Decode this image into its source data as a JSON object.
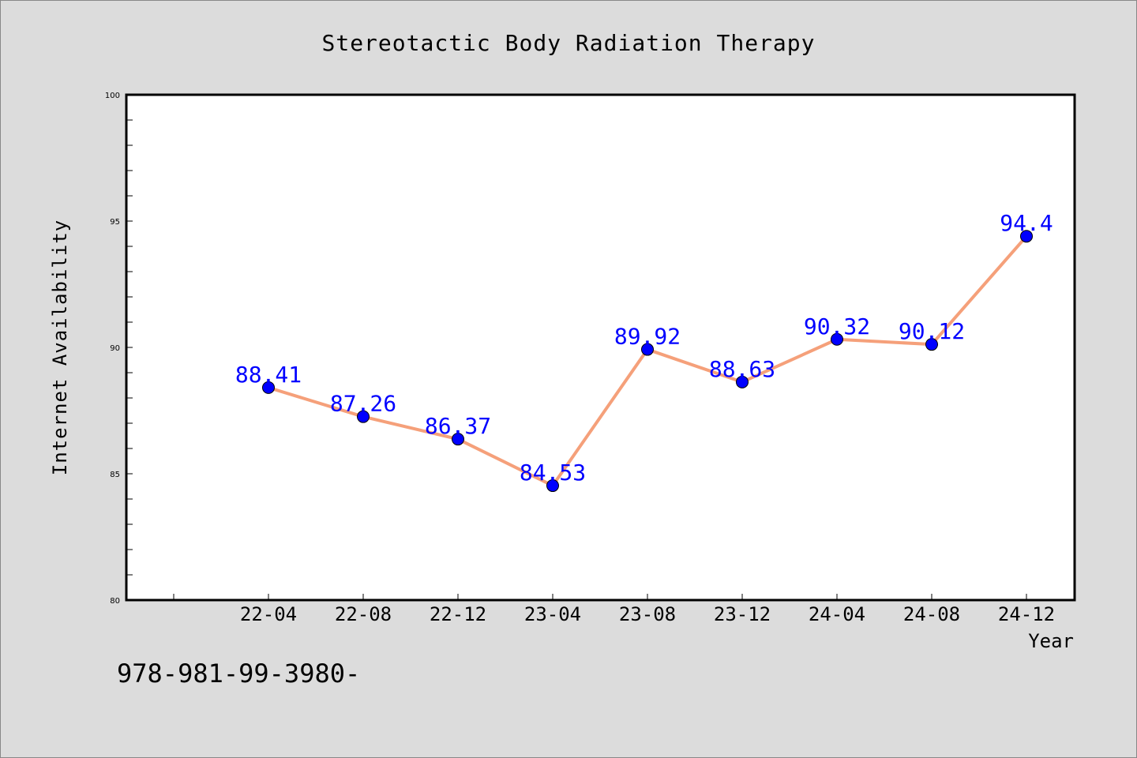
{
  "chart_data": {
    "type": "line",
    "title": "Stereotactic Body Radiation Therapy",
    "xlabel": "Year",
    "ylabel": "Internet Availability",
    "categories": [
      "22-04",
      "22-08",
      "22-12",
      "23-04",
      "23-08",
      "23-12",
      "24-04",
      "24-08",
      "24-12"
    ],
    "series": [
      {
        "values": [
          88.41,
          87.26,
          86.37,
          84.53,
          89.92,
          88.63,
          90.32,
          90.12,
          94.4
        ],
        "labels": [
          "88.41",
          "87.26",
          "86.37",
          "84.53",
          "89.92",
          "88.63",
          "90.32",
          "90.12",
          "94.4"
        ]
      }
    ],
    "ylim": [
      80,
      100
    ],
    "y_ticks": [
      80,
      85,
      90,
      95,
      100
    ],
    "y_tick_labels": [
      "80",
      "85",
      "90",
      "95",
      "100"
    ],
    "grid": false,
    "line_color": "#f5a07a",
    "marker_color": "#0000ff",
    "label_color": "#0000ff"
  },
  "footer_text": "978-981-99-3980-"
}
